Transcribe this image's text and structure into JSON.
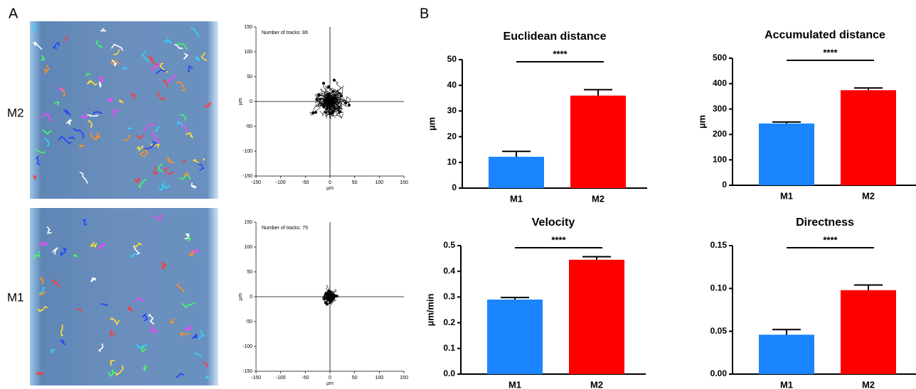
{
  "panels": [
    "A",
    "B"
  ],
  "rows": [
    "M2",
    "M1"
  ],
  "chart_data": [
    {
      "type": "track",
      "title": "Number of tracks: 86",
      "xlabel": "µm",
      "ylabel": "µm",
      "xlim": [
        -150,
        150
      ],
      "xticks": [
        -150,
        -100,
        -50,
        0,
        50,
        100,
        150
      ],
      "ylim": [
        -150,
        150
      ],
      "yticks": [
        -150,
        -100,
        -50,
        0,
        50,
        100,
        150
      ]
    },
    {
      "type": "track",
      "title": "Number of tracks: 75",
      "xlabel": "µm",
      "ylabel": "µm",
      "xlim": [
        -150,
        150
      ],
      "xticks": [
        -150,
        -100,
        -50,
        0,
        50,
        100,
        150
      ],
      "ylim": [
        -150,
        150
      ],
      "yticks": [
        -150,
        -100,
        -50,
        0,
        50,
        100,
        150
      ]
    },
    {
      "type": "bar",
      "title": "Euclidean distance",
      "ylabel": "µm",
      "categories": [
        "M1",
        "M2"
      ],
      "values": [
        12.2,
        36
      ],
      "errors": [
        2.1,
        2.3
      ],
      "colors": [
        "#1a85ff",
        "#ff0000"
      ],
      "ylim": [
        0,
        50
      ],
      "yticks": [
        0,
        10,
        20,
        30,
        40,
        50
      ],
      "significance": "****"
    },
    {
      "type": "bar",
      "title": "Accumulated distance",
      "ylabel": "µm",
      "categories": [
        "M1",
        "M2"
      ],
      "values": [
        243,
        374
      ],
      "errors": [
        6,
        9
      ],
      "colors": [
        "#1a85ff",
        "#ff0000"
      ],
      "ylim": [
        0,
        500
      ],
      "yticks": [
        0,
        100,
        200,
        300,
        400,
        500
      ],
      "significance": "****"
    },
    {
      "type": "bar",
      "title": "Velocity",
      "ylabel": "µm/min",
      "categories": [
        "M1",
        "M2"
      ],
      "values": [
        0.29,
        0.445
      ],
      "errors": [
        0.008,
        0.012
      ],
      "colors": [
        "#1a85ff",
        "#ff0000"
      ],
      "ylim": [
        0,
        0.5
      ],
      "yticks": [
        {
          "value": 0,
          "label": "0.0"
        },
        0.1,
        0.2,
        0.3,
        0.4,
        0.5
      ],
      "significance": "****"
    },
    {
      "type": "bar",
      "title": "Directness",
      "ylabel": "",
      "categories": [
        "M1",
        "M2"
      ],
      "values": [
        0.046,
        0.098
      ],
      "errors": [
        0.006,
        0.006
      ],
      "colors": [
        "#1a85ff",
        "#ff0000"
      ],
      "ylim": [
        0,
        0.15
      ],
      "yticks": [
        {
          "value": 0,
          "label": "0.00"
        },
        {
          "value": 0.05,
          "label": "0.05"
        },
        {
          "value": 0.1,
          "label": "0.10"
        },
        {
          "value": 0.15,
          "label": "0.15"
        }
      ],
      "significance": "****"
    }
  ]
}
